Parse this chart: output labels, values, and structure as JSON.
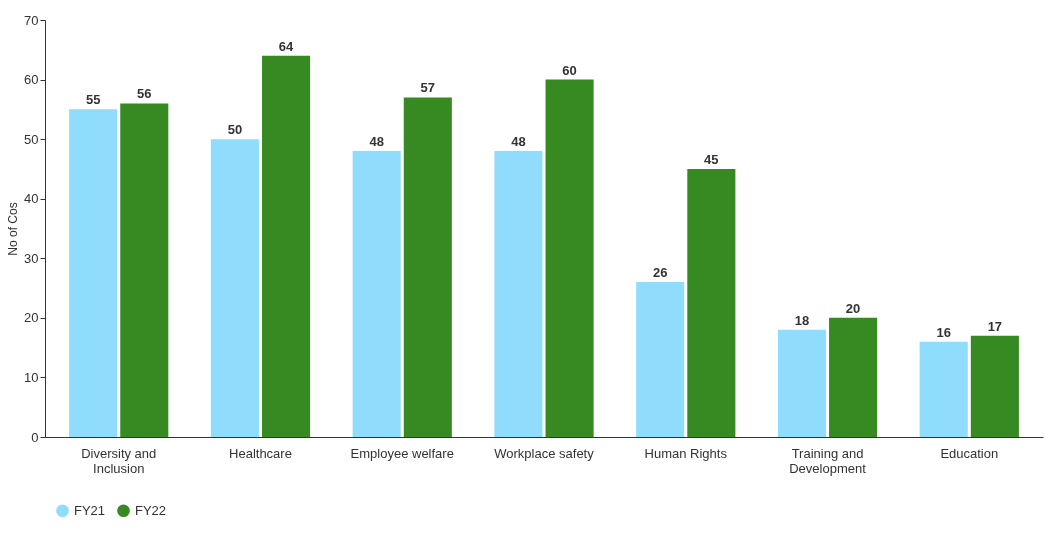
{
  "chart_data": {
    "type": "bar",
    "ylabel": "No of Cos",
    "categories": [
      "Diversity and Inclusion",
      "Healthcare",
      "Employee welfare",
      "Workplace safety",
      "Human Rights",
      "Training and Development",
      "Education"
    ],
    "series": [
      {
        "name": "FY21",
        "color": "#8fdcfc",
        "values": [
          55,
          50,
          48,
          48,
          26,
          18,
          16
        ]
      },
      {
        "name": "FY22",
        "color": "#378a22",
        "values": [
          56,
          64,
          57,
          60,
          45,
          20,
          17
        ]
      }
    ],
    "ylim": [
      0,
      70
    ],
    "yticks": [
      0,
      10,
      20,
      30,
      40,
      50,
      60,
      70
    ],
    "grid": false,
    "legend": "bottom",
    "data_labels": true
  }
}
